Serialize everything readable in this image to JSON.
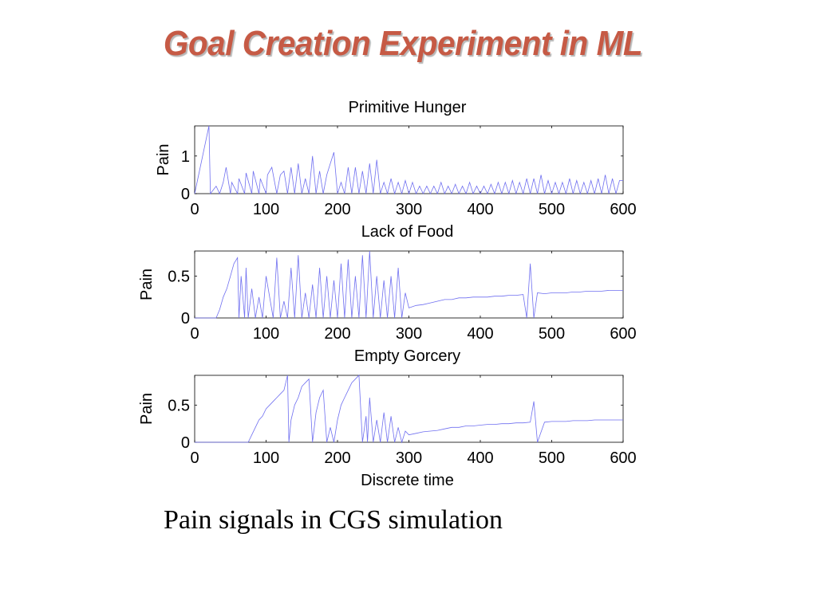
{
  "slide": {
    "title": "Goal Creation Experiment in ML",
    "caption": "Pain signals in CGS simulation"
  },
  "colors": {
    "title": "#c65a45",
    "series": "#6f6ff0"
  },
  "chart_data": [
    {
      "type": "line",
      "title": "Primitive Hunger",
      "xlabel": "Lack of Food",
      "ylabel": "Pain",
      "xlim": [
        0,
        600
      ],
      "ylim": [
        0,
        1.8
      ],
      "xticks": [
        0,
        100,
        200,
        300,
        400,
        500,
        600
      ],
      "yticks": [
        0,
        1
      ],
      "series": [
        {
          "x": [
            0,
            20,
            22,
            30,
            35,
            40,
            44,
            50,
            52,
            60,
            62,
            70,
            72,
            80,
            82,
            90,
            92,
            100,
            102,
            108,
            115,
            120,
            125,
            130,
            135,
            140,
            145,
            150,
            155,
            160,
            165,
            170,
            175,
            180,
            185,
            190,
            195,
            200,
            205,
            210,
            215,
            220,
            225,
            230,
            235,
            240,
            245,
            250,
            255,
            260,
            265,
            270,
            275,
            280,
            285,
            290,
            295,
            300,
            305,
            310,
            315,
            320,
            325,
            330,
            335,
            340,
            345,
            350,
            355,
            360,
            365,
            370,
            375,
            380,
            385,
            390,
            395,
            400,
            405,
            410,
            415,
            420,
            425,
            430,
            435,
            440,
            445,
            450,
            455,
            460,
            465,
            470,
            475,
            480,
            485,
            490,
            495,
            500,
            505,
            510,
            515,
            520,
            525,
            530,
            535,
            540,
            545,
            550,
            555,
            560,
            565,
            570,
            575,
            580,
            585,
            590,
            595,
            600
          ],
          "y": [
            0,
            1.8,
            0,
            0.2,
            0,
            0.3,
            0.7,
            0,
            0.3,
            0,
            0.4,
            0,
            0.55,
            0,
            0.6,
            0,
            0.4,
            0,
            0.5,
            0.7,
            0,
            0.5,
            0.6,
            0,
            0.7,
            0,
            0.8,
            0,
            0.4,
            0,
            1.0,
            0,
            0.6,
            0,
            0.5,
            0.8,
            1.1,
            0,
            0.3,
            0,
            0.7,
            0,
            0.7,
            0,
            0.6,
            0,
            0.8,
            0,
            0.9,
            0,
            0.3,
            0,
            0.4,
            0,
            0.3,
            0,
            0.35,
            0,
            0.3,
            0,
            0.2,
            0,
            0.2,
            0,
            0.2,
            0,
            0.3,
            0,
            0.2,
            0,
            0.25,
            0,
            0.2,
            0,
            0.3,
            0,
            0.2,
            0,
            0.2,
            0,
            0.25,
            0,
            0.3,
            0,
            0.3,
            0,
            0.35,
            0,
            0.3,
            0,
            0.4,
            0,
            0.4,
            0,
            0.5,
            0,
            0.35,
            0,
            0.3,
            0,
            0.3,
            0,
            0.4,
            0,
            0.35,
            0,
            0.3,
            0,
            0.35,
            0,
            0.4,
            0,
            0.5,
            0,
            0.4,
            0,
            0.35,
            0.35
          ]
        }
      ]
    },
    {
      "type": "line",
      "title": "",
      "xlabel": "Empty Gorcery",
      "ylabel": "Pain",
      "xlim": [
        0,
        600
      ],
      "ylim": [
        0,
        0.8
      ],
      "xticks": [
        0,
        100,
        200,
        300,
        400,
        500,
        600
      ],
      "yticks": [
        0,
        0.5
      ],
      "series": [
        {
          "x": [
            0,
            30,
            35,
            40,
            45,
            50,
            55,
            60,
            62,
            65,
            70,
            72,
            75,
            80,
            85,
            90,
            95,
            100,
            110,
            115,
            120,
            125,
            130,
            135,
            140,
            145,
            150,
            155,
            160,
            165,
            170,
            175,
            180,
            185,
            190,
            195,
            200,
            205,
            210,
            215,
            220,
            225,
            230,
            235,
            240,
            245,
            250,
            255,
            260,
            265,
            270,
            275,
            280,
            285,
            290,
            295,
            300,
            310,
            320,
            330,
            340,
            350,
            360,
            370,
            380,
            390,
            400,
            410,
            420,
            430,
            440,
            450,
            460,
            465,
            470,
            475,
            480,
            490,
            500,
            510,
            520,
            530,
            540,
            550,
            560,
            570,
            580,
            590,
            600
          ],
          "y": [
            0,
            0,
            0.1,
            0.25,
            0.35,
            0.5,
            0.65,
            0.72,
            0,
            0.5,
            0,
            0.6,
            0,
            0.35,
            0,
            0.25,
            0,
            0.5,
            0,
            0.72,
            0,
            0.2,
            0,
            0.6,
            0,
            0.75,
            0,
            0.3,
            0,
            0.4,
            0,
            0.6,
            0,
            0.5,
            0,
            0.45,
            0,
            0.65,
            0,
            0.7,
            0,
            0.5,
            0,
            0.75,
            0,
            0.8,
            0,
            0.5,
            0,
            0.45,
            0,
            0.5,
            0,
            0.6,
            0,
            0.3,
            0.12,
            0.15,
            0.16,
            0.18,
            0.2,
            0.22,
            0.22,
            0.24,
            0.24,
            0.25,
            0.25,
            0.25,
            0.26,
            0.26,
            0.27,
            0.27,
            0.28,
            0,
            0.65,
            0,
            0.3,
            0.29,
            0.3,
            0.3,
            0.3,
            0.31,
            0.31,
            0.32,
            0.32,
            0.32,
            0.33,
            0.33,
            0.33
          ]
        }
      ]
    },
    {
      "type": "line",
      "title": "",
      "xlabel": "Discrete time",
      "ylabel": "Pain",
      "xlim": [
        0,
        600
      ],
      "ylim": [
        0,
        0.9
      ],
      "xticks": [
        0,
        100,
        200,
        300,
        400,
        500,
        600
      ],
      "yticks": [
        0,
        0.5
      ],
      "series": [
        {
          "x": [
            0,
            75,
            80,
            85,
            90,
            95,
            100,
            105,
            110,
            115,
            120,
            125,
            130,
            132,
            135,
            140,
            145,
            150,
            155,
            160,
            165,
            170,
            175,
            180,
            185,
            190,
            195,
            200,
            205,
            210,
            215,
            220,
            225,
            230,
            235,
            240,
            242,
            245,
            250,
            255,
            260,
            265,
            270,
            275,
            280,
            285,
            290,
            295,
            300,
            310,
            320,
            330,
            340,
            350,
            360,
            370,
            380,
            390,
            400,
            410,
            420,
            430,
            440,
            450,
            460,
            470,
            475,
            480,
            490,
            500,
            510,
            520,
            530,
            540,
            550,
            560,
            570,
            580,
            590,
            600
          ],
          "y": [
            0,
            0,
            0.1,
            0.2,
            0.3,
            0.35,
            0.45,
            0.5,
            0.55,
            0.6,
            0.65,
            0.7,
            0.9,
            0,
            0.3,
            0.5,
            0.6,
            0.75,
            0.8,
            0.85,
            0,
            0.4,
            0.6,
            0.7,
            0,
            0.2,
            0,
            0.3,
            0.5,
            0.6,
            0.7,
            0.8,
            0.85,
            0.9,
            0,
            0.35,
            0,
            0.6,
            0,
            0.3,
            0,
            0.4,
            0,
            0.35,
            0,
            0.2,
            0,
            0.15,
            0.1,
            0.12,
            0.14,
            0.15,
            0.16,
            0.18,
            0.2,
            0.2,
            0.22,
            0.22,
            0.23,
            0.24,
            0.24,
            0.25,
            0.25,
            0.26,
            0.26,
            0.27,
            0.55,
            0,
            0.27,
            0.28,
            0.28,
            0.28,
            0.29,
            0.29,
            0.29,
            0.3,
            0.3,
            0.3,
            0.3,
            0.3
          ]
        }
      ]
    }
  ]
}
